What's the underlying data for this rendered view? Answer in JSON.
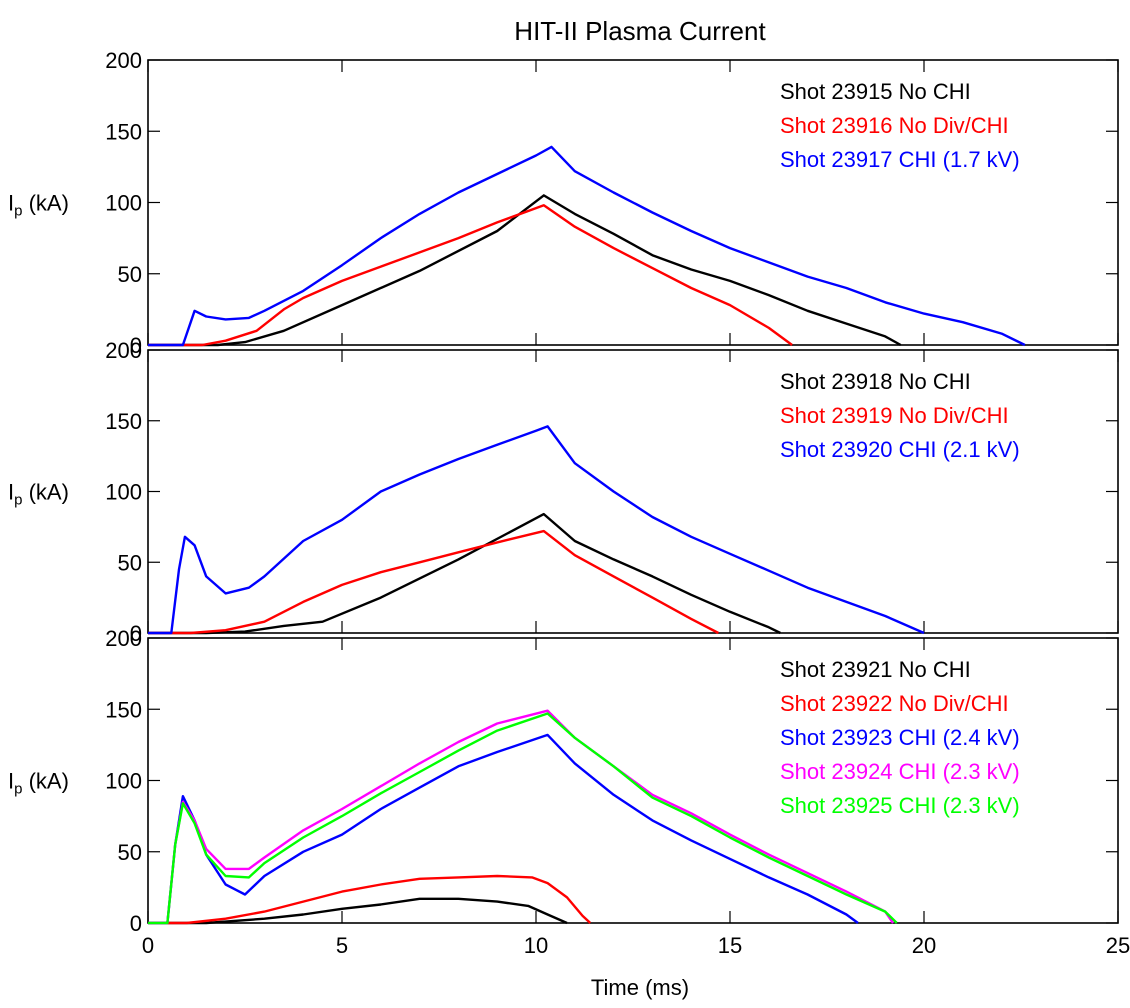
{
  "chart_data": {
    "title": "HIT-II Plasma Current",
    "type": "line",
    "xlabel": "Time (ms)",
    "xlim": [
      0,
      25
    ],
    "x_ticks": [
      "0",
      "5",
      "10",
      "15",
      "20",
      "25"
    ],
    "grid": false,
    "legend_position": "top-right",
    "panels": [
      {
        "ylabel": "I_p (kA)",
        "ylim": [
          0,
          200
        ],
        "y_ticks": [
          "0",
          "50",
          "100",
          "150",
          "200"
        ],
        "series": [
          {
            "name": "Shot 23915 No CHI",
            "color": "#000000",
            "x": [
              1.8,
              2.5,
              3.5,
              5,
              7,
              9,
              10.2,
              11,
              12,
              13,
              14,
              15,
              16,
              17,
              18,
              19,
              19.4
            ],
            "y": [
              0,
              2,
              10,
              28,
              52,
              80,
              105,
              92,
              78,
              63,
              53,
              45,
              35,
              24,
              15,
              6,
              0
            ]
          },
          {
            "name": "Shot 23916 No Div/CHI",
            "color": "#ff0000",
            "x": [
              1.4,
              2,
              2.8,
              3.5,
              4,
              5,
              6,
              7,
              8,
              9,
              10.2,
              11,
              12,
              13,
              14,
              15,
              16,
              16.6
            ],
            "y": [
              0,
              3,
              10,
              25,
              33,
              45,
              55,
              65,
              75,
              86,
              98,
              83,
              68,
              54,
              40,
              28,
              12,
              0
            ]
          },
          {
            "name": "Shot 23917 CHI (1.7 kV)",
            "color": "#0000ff",
            "x": [
              0.9,
              1.2,
              1.5,
              2,
              2.6,
              3,
              4,
              5,
              6,
              7,
              8,
              9,
              10,
              10.4,
              11,
              12,
              13,
              14,
              15,
              16,
              17,
              18,
              19,
              20,
              21,
              22,
              22.6
            ],
            "y": [
              0,
              24,
              20,
              18,
              19,
              24,
              38,
              56,
              75,
              92,
              107,
              120,
              133,
              139,
              122,
              107,
              93,
              80,
              68,
              58,
              48,
              40,
              30,
              22,
              16,
              8,
              0
            ]
          }
        ]
      },
      {
        "ylabel": "I_p (kA)",
        "ylim": [
          0,
          200
        ],
        "y_ticks": [
          "0",
          "50",
          "100",
          "150",
          "200"
        ],
        "series": [
          {
            "name": "Shot 23918 No CHI",
            "color": "#000000",
            "x": [
              1.5,
              2.5,
              3.5,
              4.5,
              6,
              8,
              10.2,
              11,
              12,
              13,
              14,
              15,
              16,
              16.3
            ],
            "y": [
              0,
              1,
              5,
              8,
              25,
              52,
              84,
              65,
              52,
              40,
              27,
              15,
              4,
              0
            ]
          },
          {
            "name": "Shot 23919 No Div/CHI",
            "color": "#ff0000",
            "x": [
              1.1,
              2,
              3,
              4,
              5,
              6,
              7,
              8,
              9,
              10.2,
              11,
              12,
              13,
              14,
              14.7
            ],
            "y": [
              0,
              2,
              8,
              22,
              34,
              43,
              50,
              57,
              64,
              72,
              55,
              40,
              25,
              10,
              0
            ]
          },
          {
            "name": "Shot 23920 CHI (2.1 kV)",
            "color": "#0000ff",
            "x": [
              0.6,
              0.8,
              0.95,
              1.2,
              1.5,
              2,
              2.6,
              3,
              4,
              5,
              6,
              7,
              8,
              9,
              10,
              10.3,
              11,
              12,
              13,
              14,
              15,
              16,
              17,
              18,
              19,
              20
            ],
            "y": [
              0,
              45,
              68,
              62,
              40,
              28,
              32,
              40,
              65,
              80,
              100,
              112,
              123,
              133,
              143,
              146,
              120,
              100,
              82,
              68,
              56,
              44,
              32,
              22,
              12,
              0
            ]
          }
        ]
      },
      {
        "ylabel": "I_p (kA)",
        "ylim": [
          0,
          200
        ],
        "y_ticks": [
          "0",
          "50",
          "100",
          "150",
          "200"
        ],
        "series": [
          {
            "name": "Shot 23921 No CHI",
            "color": "#000000",
            "x": [
              1.5,
              3,
              4,
              5,
              6,
              7,
              8,
              9,
              9.8,
              10.3,
              10.8
            ],
            "y": [
              0,
              3,
              6,
              10,
              13,
              17,
              17,
              15,
              12,
              6,
              0
            ]
          },
          {
            "name": "Shot 23922 No Div/CHI",
            "color": "#ff0000",
            "x": [
              1,
              2,
              3,
              4,
              5,
              6,
              7,
              8,
              9,
              9.9,
              10.3,
              10.8,
              11.2,
              11.4
            ],
            "y": [
              0,
              3,
              8,
              15,
              22,
              27,
              31,
              32,
              33,
              32,
              28,
              18,
              5,
              0
            ]
          },
          {
            "name": "Shot 23923 CHI (2.4 kV)",
            "color": "#0000ff",
            "x": [
              0.5,
              0.7,
              0.9,
              1.2,
              1.5,
              2,
              2.5,
              3,
              4,
              5,
              6,
              7,
              8,
              9,
              10.3,
              11,
              12,
              13,
              14,
              15,
              16,
              17,
              18,
              18.3
            ],
            "y": [
              0,
              55,
              89,
              72,
              48,
              27,
              20,
              33,
              50,
              62,
              80,
              95,
              110,
              120,
              132,
              112,
              90,
              72,
              58,
              45,
              32,
              20,
              6,
              0
            ]
          },
          {
            "name": "Shot 23924 CHI (2.3 kV)",
            "color": "#ff00ff",
            "x": [
              0.5,
              0.7,
              0.9,
              1.2,
              1.5,
              2,
              2.6,
              3,
              4,
              5,
              6,
              7,
              8,
              9,
              10.3,
              11,
              12,
              13,
              14,
              15,
              16,
              17,
              18,
              19,
              19.2
            ],
            "y": [
              0,
              55,
              85,
              72,
              52,
              38,
              38,
              46,
              65,
              80,
              96,
              112,
              127,
              140,
              149,
              130,
              110,
              90,
              77,
              62,
              48,
              35,
              22,
              8,
              0
            ]
          },
          {
            "name": "Shot 23925 CHI (2.3 kV)",
            "color": "#00ff00",
            "x": [
              0.5,
              0.7,
              0.9,
              1.2,
              1.5,
              2,
              2.6,
              3,
              4,
              5,
              6,
              7,
              8,
              9,
              10.3,
              11,
              12,
              13,
              14,
              15,
              16,
              17,
              18,
              19,
              19.3
            ],
            "y": [
              0,
              55,
              84,
              70,
              48,
              33,
              32,
              42,
              60,
              75,
              91,
              106,
              121,
              135,
              147,
              130,
              110,
              88,
              75,
              60,
              46,
              33,
              20,
              8,
              0
            ]
          }
        ]
      }
    ]
  }
}
